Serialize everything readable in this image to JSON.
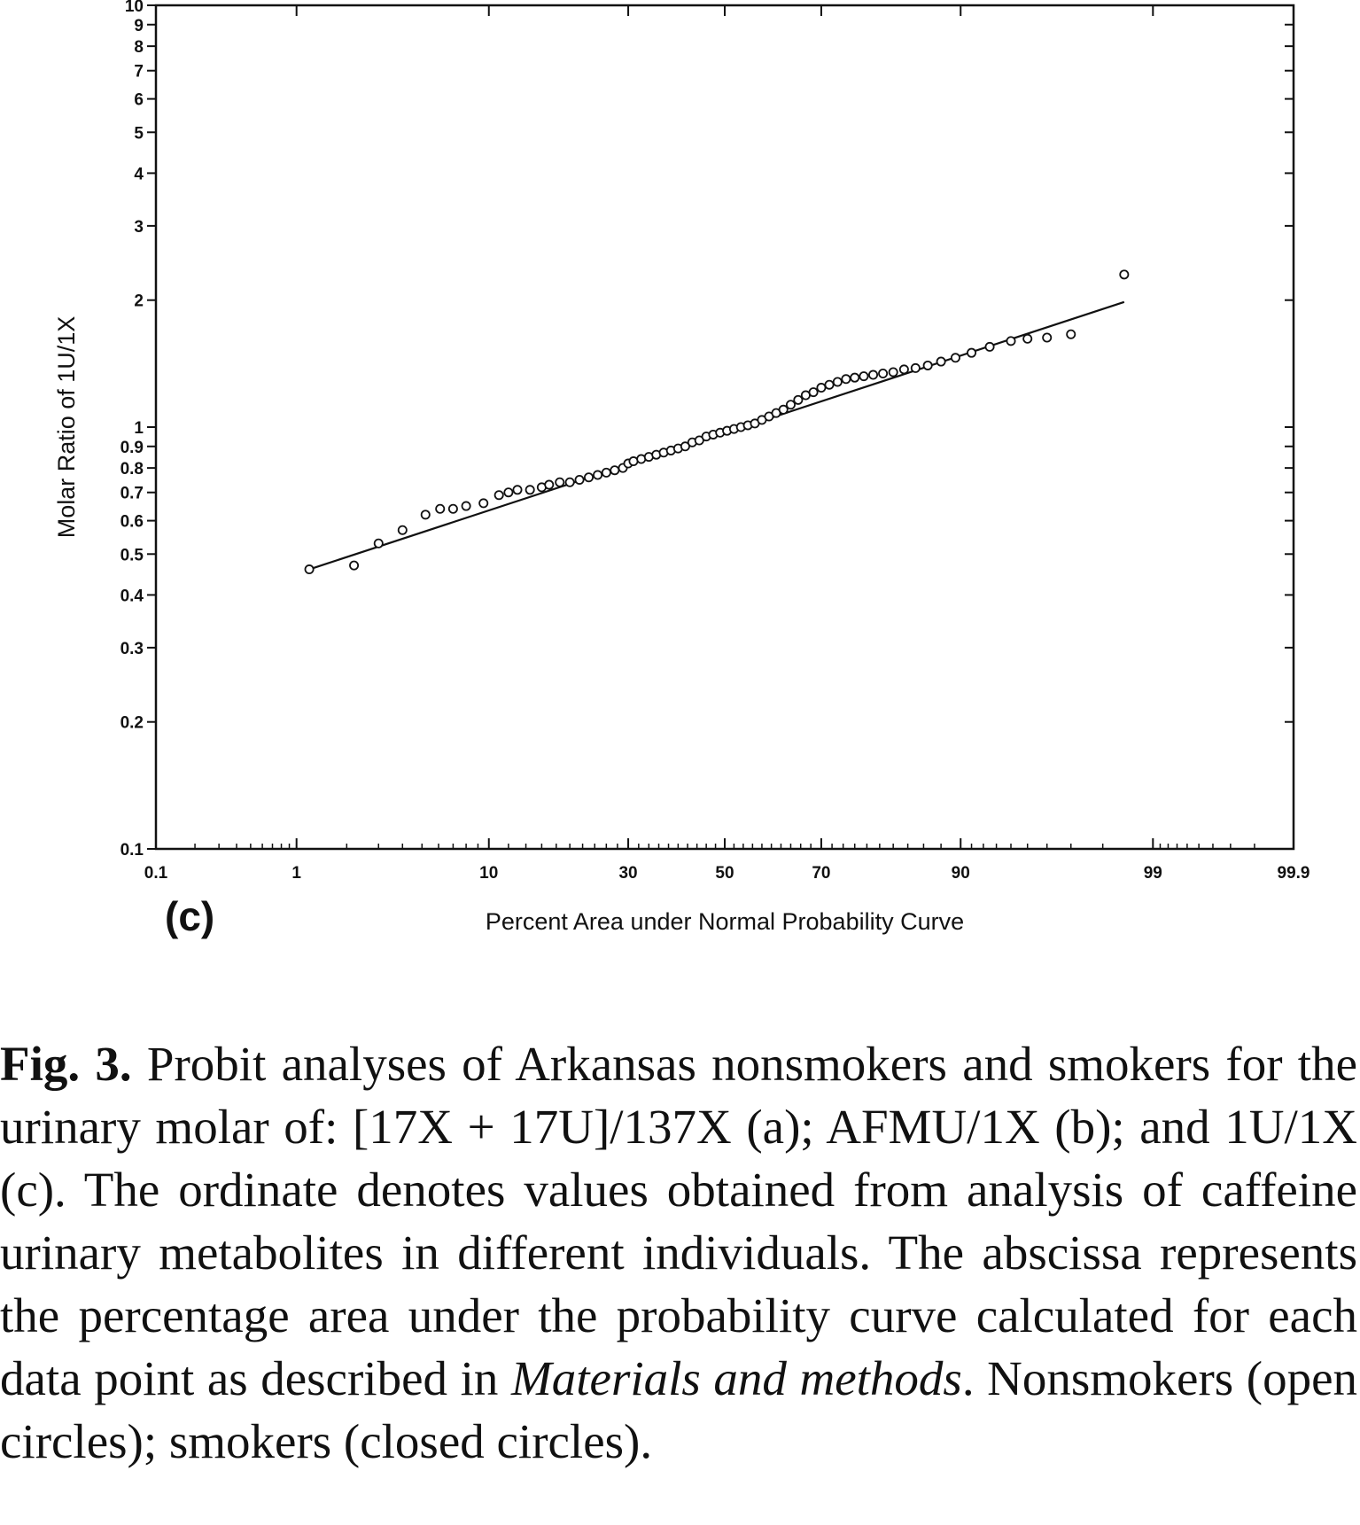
{
  "chart_data": {
    "type": "scatter",
    "title": "",
    "panel_label": "(c)",
    "xlabel": "Percent Area under Normal Probability Curve",
    "ylabel": "Molar Ratio of 1U/1X",
    "x_scale": "probability",
    "y_scale": "log",
    "xlim": [
      0.1,
      99.9
    ],
    "ylim": [
      0.1,
      10
    ],
    "x_tick_labels": [
      "0.1",
      "1",
      "10",
      "30",
      "50",
      "70",
      "90",
      "99",
      "99.9"
    ],
    "x_tick_values": [
      0.1,
      1,
      10,
      30,
      50,
      70,
      90,
      99,
      99.9
    ],
    "y_tick_labels": [
      "0.1",
      "0.2",
      "0.3",
      "0.4",
      "0.5",
      "0.6",
      "0.7",
      "0.8",
      "0.9",
      "1",
      "2",
      "3",
      "4",
      "5",
      "6",
      "7",
      "8",
      "9",
      "10"
    ],
    "y_tick_values": [
      0.1,
      0.2,
      0.3,
      0.4,
      0.5,
      0.6,
      0.7,
      0.8,
      0.9,
      1,
      2,
      3,
      4,
      5,
      6,
      7,
      8,
      9,
      10
    ],
    "grid": false,
    "series": [
      {
        "marker": "open-circle",
        "x": [
          1.2,
          2.2,
          3,
          4,
          5.2,
          6.1,
          7,
          8,
          9.5,
          11,
          12,
          13,
          14.5,
          16,
          17,
          18.5,
          20,
          21.5,
          23,
          24.5,
          26,
          27.5,
          29,
          30,
          31,
          32.5,
          34,
          35.5,
          37,
          38.5,
          40,
          41.5,
          43,
          44.5,
          46,
          47.5,
          49,
          50.5,
          52,
          53.5,
          55,
          56.5,
          58,
          59.5,
          61,
          62.5,
          64,
          65.5,
          67,
          68.5,
          70,
          71.5,
          73,
          74.5,
          76,
          77.5,
          79,
          80.5,
          82,
          83.5,
          85,
          86.5,
          88,
          89.5,
          91,
          92.5,
          94,
          95,
          96,
          97,
          98.5
        ],
        "y": [
          0.46,
          0.47,
          0.53,
          0.57,
          0.62,
          0.64,
          0.64,
          0.65,
          0.66,
          0.69,
          0.7,
          0.71,
          0.71,
          0.72,
          0.73,
          0.74,
          0.74,
          0.75,
          0.76,
          0.77,
          0.78,
          0.79,
          0.8,
          0.82,
          0.83,
          0.84,
          0.85,
          0.86,
          0.87,
          0.88,
          0.89,
          0.9,
          0.92,
          0.93,
          0.95,
          0.96,
          0.97,
          0.98,
          0.99,
          1.0,
          1.01,
          1.02,
          1.04,
          1.06,
          1.08,
          1.1,
          1.13,
          1.16,
          1.19,
          1.21,
          1.24,
          1.26,
          1.28,
          1.3,
          1.31,
          1.32,
          1.33,
          1.34,
          1.35,
          1.37,
          1.38,
          1.4,
          1.43,
          1.46,
          1.5,
          1.55,
          1.6,
          1.62,
          1.63,
          1.66,
          2.3
        ]
      }
    ],
    "fit_line": {
      "x": [
        1.2,
        98.5
      ],
      "y": [
        0.46,
        1.98
      ]
    }
  },
  "caption": {
    "fig_label": "Fig. 3.",
    "text_before_italic": "Probit analyses of Arkansas nonsmokers and smokers for the urinary molar of: [17X + 17U]/137X (a); AFMU/1X (b); and 1U/1X (c). The ordinate denotes values obtained from analysis of caffeine urinary metabolites in different individuals. The abscissa represents the percentage area under the probability curve calculated for each data point as described in",
    "italic": "Materials and methods",
    "text_after_italic": ". Nonsmokers (open circles); smokers (closed circles)."
  }
}
